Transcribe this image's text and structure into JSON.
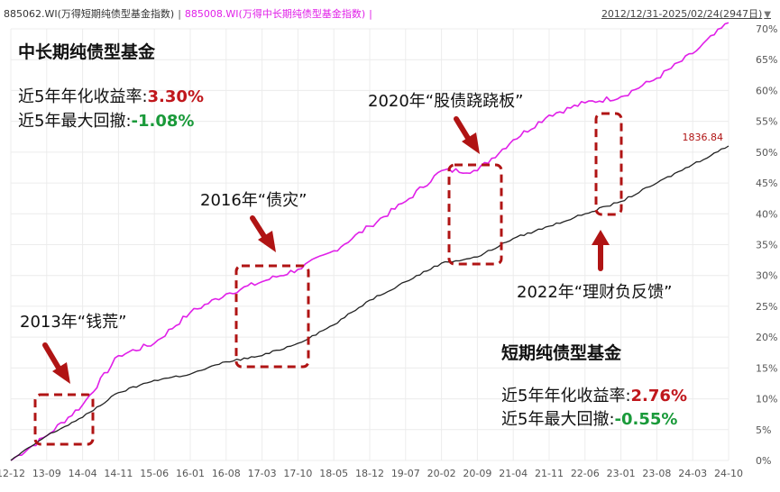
{
  "header": {
    "series1_label": "885062.WI(万得短期纯债型基金指数)",
    "separator": "|",
    "series2_label": "885008.WI(万得中长期纯债型基金指数)",
    "series2_suffix": "|",
    "date_range": "2012/12/31-2025/02/24(2947日)",
    "dropdown_icon": "triangle-down-icon"
  },
  "chart_data": {
    "type": "line",
    "x": [
      "12-12",
      "13-09",
      "14-04",
      "14-11",
      "15-06",
      "16-01",
      "16-08",
      "17-03",
      "17-10",
      "18-05",
      "18-12",
      "19-07",
      "20-02",
      "20-09",
      "21-04",
      "21-11",
      "22-06",
      "23-01",
      "23-08",
      "24-03",
      "24-10"
    ],
    "ylim": [
      0,
      70
    ],
    "ylabel_ticks": [
      "0%",
      "5%",
      "10%",
      "15%",
      "20%",
      "25%",
      "30%",
      "35%",
      "40%",
      "45%",
      "50%",
      "55%",
      "60%",
      "65%",
      "70%"
    ],
    "y_axis_side": "right",
    "grid": true,
    "series": [
      {
        "name": "885008.WI(万得中长期纯债型基金指数)",
        "color": "#e020e8",
        "values": [
          0,
          4,
          9,
          17,
          19,
          24,
          27,
          29,
          31,
          34,
          38,
          42,
          47,
          47,
          52,
          56,
          58,
          59,
          62,
          66,
          71
        ]
      },
      {
        "name": "885062.WI(万得短期纯债型基金指数)",
        "color": "#222222",
        "values": [
          0,
          4,
          7,
          11,
          13,
          14,
          16,
          17,
          19,
          22,
          26,
          29,
          32,
          33,
          36,
          38,
          40,
          42,
          45,
          48,
          51
        ]
      }
    ],
    "last_value_label": "1836.84"
  },
  "annotations": {
    "long_title": "中长期纯债型基金",
    "long_ret_label": "近5年年化收益率:",
    "long_ret_value": "3.30%",
    "long_dd_label": "近5年最大回撤:",
    "long_dd_value": "-1.08%",
    "short_title": "短期纯债型基金",
    "short_ret_label": "近5年年化收益率:",
    "short_ret_value": "2.76%",
    "short_dd_label": "近5年最大回撤:",
    "short_dd_value": "-0.55%",
    "event_2013": "2013年“钱荒”",
    "event_2016": "2016年“债灾”",
    "event_2020": "2020年“股债跷跷板”",
    "event_2022": "2022年“理财负反馈”"
  },
  "colors": {
    "red_value": "#c0171c",
    "green_value": "#1a9a3a",
    "box_and_arrow": "#b01414",
    "grid": "#ececec"
  }
}
